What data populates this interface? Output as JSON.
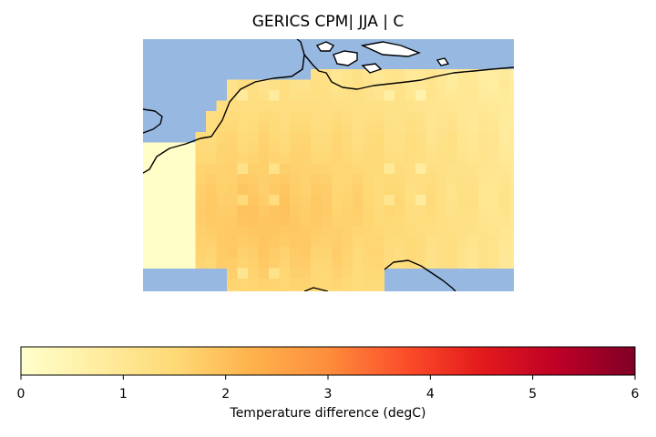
{
  "title": "GERICS CPM| JJA | C",
  "colorbar": {
    "label": "Temperature difference (degC)",
    "colormap": "YlOrRd",
    "min": 0,
    "max": 6,
    "ticks": [
      "0",
      "1",
      "2",
      "3",
      "4",
      "5",
      "6"
    ]
  },
  "map": {
    "sea_color": "#97b8e1",
    "coast_color": "#000000",
    "outside_color": "#ffffff"
  }
}
